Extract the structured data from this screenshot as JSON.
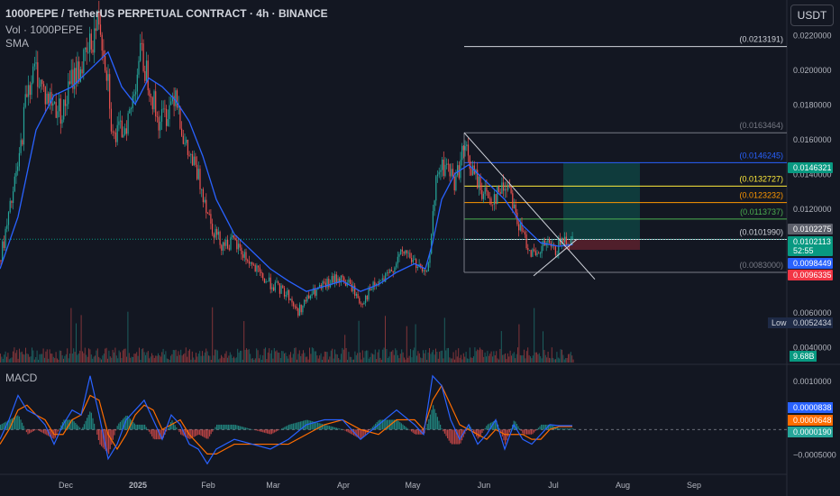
{
  "header": {
    "title": "1000PEPE / TetherUS PERPETUAL CONTRACT · 4h · BINANCE",
    "volume_label": "Vol · 1000PEPE",
    "sma_label": "SMA",
    "macd_label": "MACD",
    "currency_button": "USDT"
  },
  "chart_data": [
    {
      "type": "candlestick",
      "title": "1000PEPE / TetherUS PERPETUAL CONTRACT · 4h · BINANCE",
      "timeframe": "4h",
      "x_tick_labels": [
        "Dec",
        "2025",
        "Feb",
        "Mar",
        "Apr",
        "May",
        "Jun",
        "Jul",
        "Aug",
        "Sep"
      ],
      "y_tick_labels": [
        "0.0220000",
        "0.0200000",
        "0.0180000",
        "0.0160000",
        "0.0140000",
        "0.0120000",
        "0.0060000",
        "0.0040000"
      ],
      "y_ticks": [
        0.022,
        0.02,
        0.018,
        0.016,
        0.014,
        0.012,
        0.006,
        0.004
      ],
      "ylim": [
        0.0031,
        0.024
      ],
      "price_path": [
        [
          0,
          0.009
        ],
        [
          8,
          0.011
        ],
        [
          15,
          0.013
        ],
        [
          22,
          0.015
        ],
        [
          30,
          0.019
        ],
        [
          40,
          0.02
        ],
        [
          50,
          0.0185
        ],
        [
          60,
          0.018
        ],
        [
          70,
          0.0175
        ],
        [
          80,
          0.0195
        ],
        [
          95,
          0.0205
        ],
        [
          110,
          0.023
        ],
        [
          120,
          0.0195
        ],
        [
          125,
          0.016
        ],
        [
          135,
          0.0165
        ],
        [
          145,
          0.0175
        ],
        [
          155,
          0.021
        ],
        [
          165,
          0.0195
        ],
        [
          175,
          0.017
        ],
        [
          185,
          0.0175
        ],
        [
          195,
          0.019
        ],
        [
          205,
          0.0155
        ],
        [
          215,
          0.0145
        ],
        [
          225,
          0.013
        ],
        [
          235,
          0.011
        ],
        [
          245,
          0.01
        ],
        [
          260,
          0.01
        ],
        [
          275,
          0.009
        ],
        [
          290,
          0.008
        ],
        [
          305,
          0.0075
        ],
        [
          320,
          0.007
        ],
        [
          330,
          0.006
        ],
        [
          345,
          0.007
        ],
        [
          360,
          0.0075
        ],
        [
          375,
          0.008
        ],
        [
          390,
          0.0075
        ],
        [
          400,
          0.0065
        ],
        [
          415,
          0.0075
        ],
        [
          430,
          0.008
        ],
        [
          440,
          0.009
        ],
        [
          450,
          0.0095
        ],
        [
          465,
          0.0085
        ],
        [
          472,
          0.008
        ],
        [
          478,
          0.01
        ],
        [
          485,
          0.014
        ],
        [
          495,
          0.0145
        ],
        [
          505,
          0.0135
        ],
        [
          515,
          0.0155
        ],
        [
          525,
          0.014
        ],
        [
          535,
          0.013
        ],
        [
          545,
          0.0125
        ],
        [
          555,
          0.013
        ],
        [
          565,
          0.0135
        ],
        [
          575,
          0.011
        ],
        [
          585,
          0.01
        ],
        [
          595,
          0.009
        ],
        [
          605,
          0.01
        ],
        [
          615,
          0.0095
        ],
        [
          625,
          0.0102
        ],
        [
          635,
          0.0102
        ]
      ],
      "sma_path": [
        [
          0,
          0.0085
        ],
        [
          20,
          0.0115
        ],
        [
          40,
          0.0165
        ],
        [
          60,
          0.0185
        ],
        [
          80,
          0.019
        ],
        [
          100,
          0.02
        ],
        [
          120,
          0.021
        ],
        [
          135,
          0.019
        ],
        [
          150,
          0.018
        ],
        [
          165,
          0.0195
        ],
        [
          180,
          0.019
        ],
        [
          195,
          0.0182
        ],
        [
          210,
          0.017
        ],
        [
          225,
          0.015
        ],
        [
          240,
          0.0125
        ],
        [
          260,
          0.0105
        ],
        [
          280,
          0.0095
        ],
        [
          300,
          0.0085
        ],
        [
          320,
          0.0078
        ],
        [
          340,
          0.0072
        ],
        [
          360,
          0.0075
        ],
        [
          380,
          0.0078
        ],
        [
          400,
          0.0072
        ],
        [
          420,
          0.0076
        ],
        [
          440,
          0.0083
        ],
        [
          460,
          0.0088
        ],
        [
          472,
          0.0085
        ],
        [
          480,
          0.01
        ],
        [
          490,
          0.0125
        ],
        [
          505,
          0.014
        ],
        [
          520,
          0.0145
        ],
        [
          540,
          0.0135
        ],
        [
          560,
          0.0125
        ],
        [
          580,
          0.011
        ],
        [
          600,
          0.01
        ],
        [
          620,
          0.0098
        ],
        [
          635,
          0.0099
        ]
      ],
      "fib_levels": [
        {
          "label": "(0.0213191)",
          "value": 0.0213191,
          "color": "#d1d4dc"
        },
        {
          "label": "(0.0163464)",
          "value": 0.0163464,
          "color": "#787b86"
        },
        {
          "label": "(0.0146245)",
          "value": 0.0146245,
          "color": "#2962ff"
        },
        {
          "label": "(0.0132727)",
          "value": 0.0132727,
          "color": "#ffeb3b"
        },
        {
          "label": "(0.0123232)",
          "value": 0.0123232,
          "color": "#ff9800"
        },
        {
          "label": "(0.0113737)",
          "value": 0.0113737,
          "color": "#4caf50"
        },
        {
          "label": "(0.0101990)",
          "value": 0.010199,
          "color": "#d1d4dc"
        },
        {
          "label": "(0.0083000)",
          "value": 0.0083,
          "color": "#787b86"
        }
      ],
      "price_badges": [
        {
          "label": "0.0146321",
          "bg": "#089981",
          "fg": "#ffffff"
        },
        {
          "label": "0.0102275",
          "bg": "#5d606b",
          "fg": "#ffffff"
        },
        {
          "label": "0.0102113",
          "bg": "#089981",
          "fg": "#ffffff",
          "sublabel": "52:55"
        },
        {
          "label": "0.0098449",
          "bg": "#2962ff",
          "fg": "#ffffff"
        },
        {
          "label": "0.0096335",
          "bg": "#f23645",
          "fg": "#ffffff"
        }
      ],
      "low_marker": {
        "tag": "Low",
        "label": "0.0052434"
      },
      "volume_badge": "9.68B",
      "long_position": {
        "entry": 0.0102,
        "target": 0.0146,
        "stop": 0.0096
      }
    },
    {
      "type": "line",
      "title": "MACD",
      "y_tick_labels": [
        "0.0010000",
        "−0.0005000"
      ],
      "y_ticks": [
        0.001,
        -0.0005
      ],
      "ylim": [
        -0.0009,
        0.0013
      ],
      "macd_path": [
        [
          0,
          -0.0002
        ],
        [
          10,
          0.0002
        ],
        [
          20,
          0.0007
        ],
        [
          30,
          0.0004
        ],
        [
          40,
          0.0003
        ],
        [
          50,
          0.0001
        ],
        [
          60,
          -0.0003
        ],
        [
          70,
          0.0001
        ],
        [
          80,
          0.0004
        ],
        [
          90,
          0.0003
        ],
        [
          100,
          0.0011
        ],
        [
          110,
          0.0003
        ],
        [
          120,
          -0.0006
        ],
        [
          130,
          -0.0003
        ],
        [
          140,
          0.0002
        ],
        [
          150,
          0.0004
        ],
        [
          160,
          0.0006
        ],
        [
          170,
          0.0002
        ],
        [
          180,
          -0.0002
        ],
        [
          190,
          0.0003
        ],
        [
          200,
          0.0001
        ],
        [
          210,
          -0.0003
        ],
        [
          220,
          -0.0004
        ],
        [
          230,
          -0.0007
        ],
        [
          240,
          -0.0004
        ],
        [
          260,
          -0.0002
        ],
        [
          280,
          -0.0003
        ],
        [
          300,
          -0.0004
        ],
        [
          320,
          -0.0002
        ],
        [
          340,
          0.0001
        ],
        [
          360,
          0.0002
        ],
        [
          380,
          0.0002
        ],
        [
          400,
          -0.0002
        ],
        [
          420,
          0.0001
        ],
        [
          440,
          0.0004
        ],
        [
          460,
          0.0001
        ],
        [
          470,
          -0.0001
        ],
        [
          480,
          0.0011
        ],
        [
          490,
          0.0009
        ],
        [
          500,
          0.0002
        ],
        [
          510,
          -0.0002
        ],
        [
          520,
          0.0001
        ],
        [
          530,
          -0.0003
        ],
        [
          540,
          -0.0001
        ],
        [
          550,
          0.0002
        ],
        [
          560,
          -0.0004
        ],
        [
          570,
          0.0001
        ],
        [
          580,
          -0.0002
        ],
        [
          590,
          -0.0003
        ],
        [
          600,
          -0.0001
        ],
        [
          610,
          0.0001
        ],
        [
          620,
          8e-05
        ],
        [
          635,
          8e-05
        ]
      ],
      "signal_path": [
        [
          0,
          -0.0003
        ],
        [
          10,
          0.0
        ],
        [
          20,
          0.0004
        ],
        [
          30,
          0.0005
        ],
        [
          40,
          0.0003
        ],
        [
          50,
          0.0002
        ],
        [
          60,
          -0.0001
        ],
        [
          70,
          -0.0001
        ],
        [
          80,
          0.0002
        ],
        [
          90,
          0.0003
        ],
        [
          100,
          0.0007
        ],
        [
          110,
          0.0006
        ],
        [
          120,
          -0.0001
        ],
        [
          130,
          -0.0004
        ],
        [
          140,
          -0.0001
        ],
        [
          150,
          0.0003
        ],
        [
          160,
          0.0005
        ],
        [
          170,
          0.0004
        ],
        [
          180,
          0.0
        ],
        [
          190,
          0.0001
        ],
        [
          200,
          0.0002
        ],
        [
          210,
          -0.0001
        ],
        [
          220,
          -0.0003
        ],
        [
          230,
          -0.0005
        ],
        [
          240,
          -0.0005
        ],
        [
          260,
          -0.0003
        ],
        [
          280,
          -0.0003
        ],
        [
          300,
          -0.0003
        ],
        [
          320,
          -0.0003
        ],
        [
          340,
          -0.0001
        ],
        [
          360,
          0.0001
        ],
        [
          380,
          0.0002
        ],
        [
          400,
          0.0
        ],
        [
          420,
          -0.0001
        ],
        [
          440,
          0.0002
        ],
        [
          460,
          0.0002
        ],
        [
          470,
          0.0
        ],
        [
          480,
          0.0006
        ],
        [
          490,
          0.0009
        ],
        [
          500,
          0.0005
        ],
        [
          510,
          0.0001
        ],
        [
          520,
          0.0
        ],
        [
          530,
          -0.0001
        ],
        [
          540,
          -0.0002
        ],
        [
          550,
          0.0
        ],
        [
          560,
          -0.0001
        ],
        [
          570,
          -0.0001
        ],
        [
          580,
          -0.0001
        ],
        [
          590,
          -0.0002
        ],
        [
          600,
          -0.0002
        ],
        [
          610,
          0.0
        ],
        [
          620,
          6e-05
        ],
        [
          635,
          6e-05
        ]
      ],
      "badges": [
        {
          "label": "0.0000838",
          "bg": "#2962ff"
        },
        {
          "label": "0.0000648",
          "bg": "#ff6d00"
        },
        {
          "label": "0.0000190",
          "bg": "#26a69a"
        }
      ]
    }
  ]
}
